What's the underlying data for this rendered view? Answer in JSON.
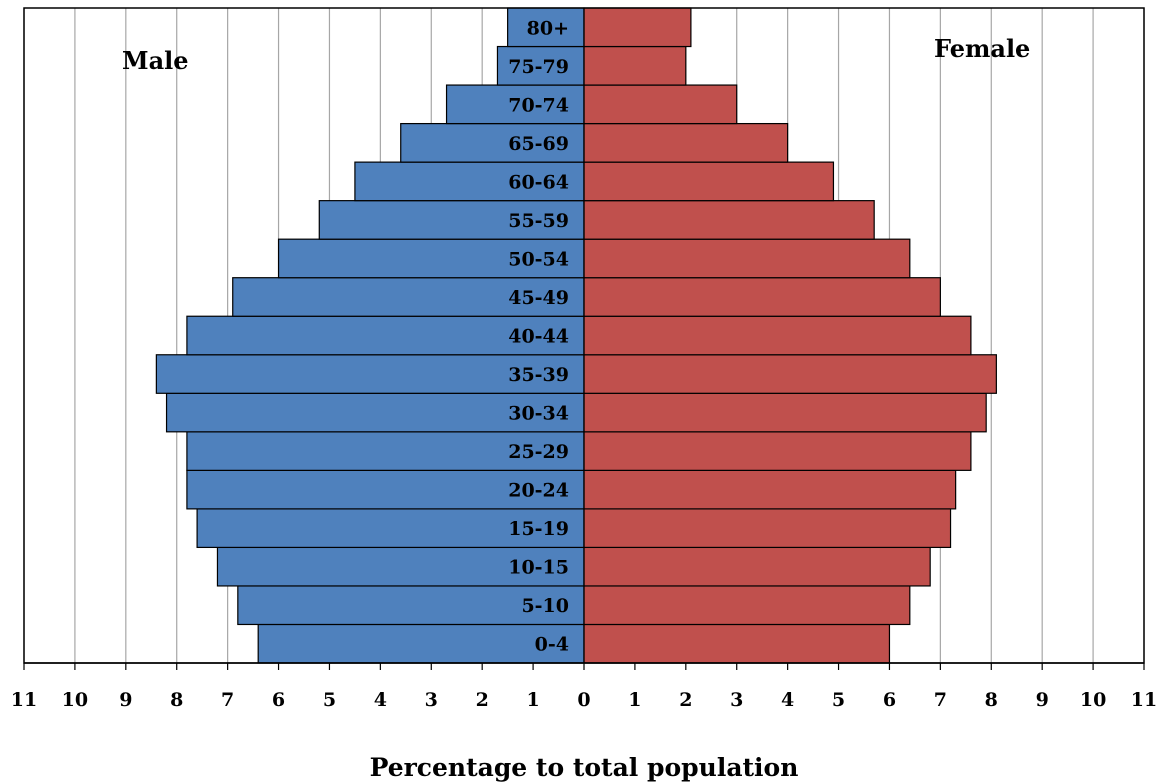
{
  "chart_data": {
    "type": "bar",
    "orientation": "horizontal",
    "subtype": "population-pyramid",
    "categories": [
      "0-4",
      "5-10",
      "10-15",
      "15-19",
      "20-24",
      "25-29",
      "30-34",
      "35-39",
      "40-44",
      "45-49",
      "50-54",
      "55-59",
      "60-64",
      "65-69",
      "70-74",
      "75-79",
      "80+"
    ],
    "series": [
      {
        "name": "Male",
        "color": "#4f81bd",
        "values": [
          6.4,
          6.8,
          7.2,
          7.6,
          7.8,
          7.8,
          8.2,
          8.4,
          7.8,
          6.9,
          6.0,
          5.2,
          4.5,
          3.6,
          2.7,
          1.7,
          1.5
        ]
      },
      {
        "name": "Female",
        "color": "#c0504d",
        "values": [
          6.0,
          6.4,
          6.8,
          7.2,
          7.3,
          7.6,
          7.9,
          8.1,
          7.6,
          7.0,
          6.4,
          5.7,
          4.9,
          4.0,
          3.0,
          2.0,
          2.1
        ]
      }
    ],
    "xlabel": "Percentage to total population",
    "xlim": [
      -11,
      11
    ],
    "x_tick_labels": [
      "11",
      "10",
      "9",
      "8",
      "7",
      "6",
      "5",
      "4",
      "3",
      "2",
      "1",
      "0",
      "1",
      "2",
      "3",
      "4",
      "5",
      "6",
      "7",
      "8",
      "9",
      "10",
      "11"
    ],
    "grid": "vertical",
    "legend": "none"
  }
}
